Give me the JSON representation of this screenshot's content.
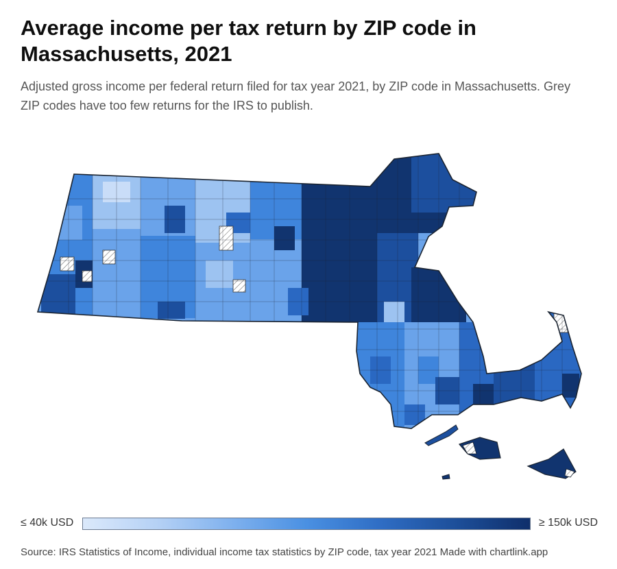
{
  "header": {
    "title": "Average income per tax return by ZIP code in Massachusetts, 2021",
    "subtitle": "Adjusted gross income per federal return filed for tax year 2021, by ZIP code in Massachusetts. Grey ZIP codes have too few returns for the IRS to publish."
  },
  "legend": {
    "min_label": "≤ 40k USD",
    "max_label": "≥ 150k USD",
    "color_low": "#dbe9fb",
    "color_high": "#0f2f6b"
  },
  "footer": {
    "source": "Source: IRS Statistics of Income, individual income tax statistics by ZIP code, tax year 2021 Made with chartlink.app"
  },
  "colors": {
    "c1": "#c9ddf8",
    "c2": "#9dc3f1",
    "c3": "#6aa3ea",
    "c4": "#3f85dc",
    "c5": "#2a68c2",
    "c6": "#1c4f9e",
    "c7": "#11346f",
    "stroke": "#1a2330"
  }
}
